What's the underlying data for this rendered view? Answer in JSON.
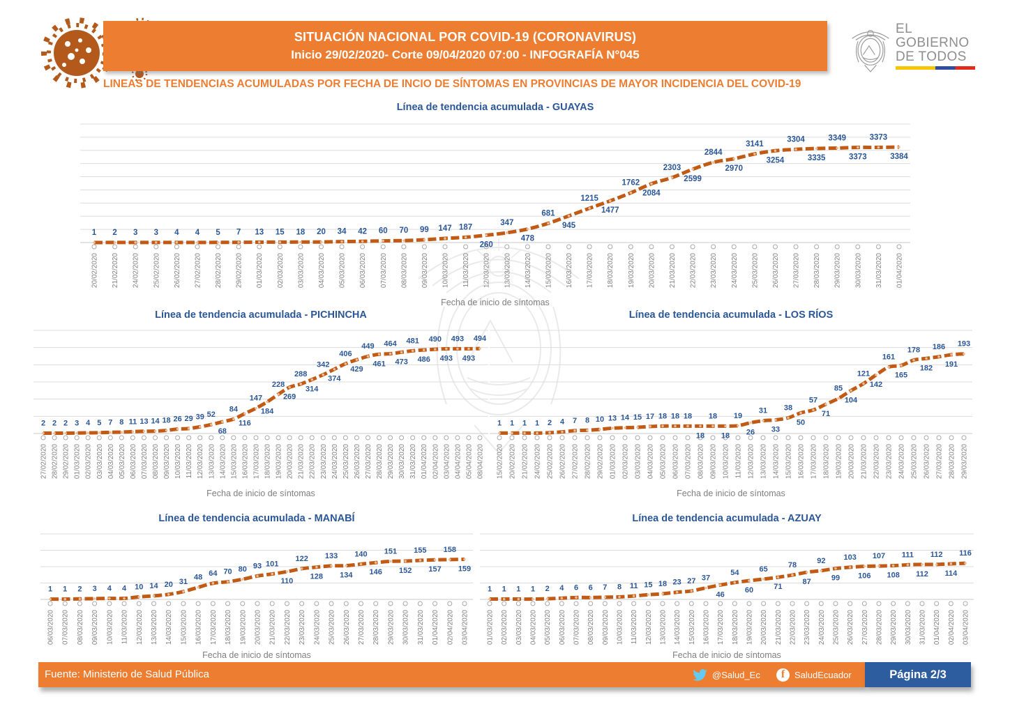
{
  "header": {
    "title_line1": "SITUACIÓN NACIONAL POR  COVID-19 (CORONAVIRUS)",
    "title_line2": "Inicio 29/02/2020- Corte 09/04/2020 07:00  - INFOGRAFÍA N°045",
    "subtitle": "LINEAS DE TENDENCIAS ACUMULADAS POR FECHA DE INCIO DE SÍNTOMAS EN PROVINCIAS DE MAYOR INCIDENCIA DEL COVID-19",
    "logo": {
      "line1": "EL",
      "line2": "GOBIERNO",
      "line3": "DE TODOS"
    }
  },
  "footer": {
    "source": "Fuente: Ministerio de Salud Pública",
    "twitter": "@Salud_Ec",
    "facebook": "SaludEcuador",
    "page": "Página 2/3"
  },
  "colors": {
    "banner_orange": "#ED7D31",
    "line_orange": "#C05A15",
    "label_blue": "#2B5797",
    "title_blue": "#2B5797",
    "date_gray": "#808080",
    "grid_gray": "#DCDCDC",
    "page_box_blue": "#2D5C9F",
    "twitter_blue": "#62CBF2",
    "logo_gray": "#8E8E8E",
    "virus_brown": "#B3591B"
  },
  "chart_data": [
    {
      "type": "line",
      "title": "Línea de tendencia acumulada - GUAYAS",
      "xlabel": "Fecha de inicio de síntomas",
      "x": [
        "20/02/2020",
        "21/02/2020",
        "24/02/2020",
        "25/02/2020",
        "26/02/2020",
        "27/02/2020",
        "28/02/2020",
        "29/02/2020",
        "01/03/2020",
        "02/03/2020",
        "03/03/2020",
        "04/03/2020",
        "05/03/2020",
        "06/03/2020",
        "07/03/2020",
        "08/03/2020",
        "09/03/2020",
        "10/03/2020",
        "11/03/2020",
        "12/03/2020",
        "13/03/2020",
        "14/03/2020",
        "15/03/2020",
        "16/03/2020",
        "17/03/2020",
        "18/03/2020",
        "19/03/2020",
        "20/03/2020",
        "21/03/2020",
        "22/03/2020",
        "23/03/2020",
        "24/03/2020",
        "25/03/2020",
        "26/03/2020",
        "27/03/2020",
        "28/03/2020",
        "29/03/2020",
        "30/03/2020",
        "31/03/2020",
        "01/04/2020"
      ],
      "values": [
        1,
        2,
        3,
        3,
        4,
        4,
        5,
        7,
        13,
        15,
        18,
        20,
        34,
        42,
        60,
        70,
        99,
        147,
        187,
        260,
        347,
        478,
        681,
        945,
        1215,
        1477,
        1762,
        2084,
        2303,
        2599,
        2844,
        2970,
        3141,
        3254,
        3304,
        3335,
        3349,
        3373,
        3373,
        3384
      ],
      "ylim": [
        0,
        4200
      ],
      "grid_intervals": 9,
      "alt_start": 19,
      "grid": true,
      "legend": "none"
    },
    {
      "type": "line",
      "title": "Línea de tendencia acumulada - PICHINCHA",
      "xlabel": "Fecha de inicio de síntomas",
      "x": [
        "27/02/2020",
        "28/02/2020",
        "29/02/2020",
        "01/03/2020",
        "02/03/2020",
        "03/03/2020",
        "04/03/2020",
        "05/03/2020",
        "06/03/2020",
        "07/03/2020",
        "08/03/2020",
        "09/03/2020",
        "10/03/2020",
        "11/03/2020",
        "12/03/2020",
        "13/03/2020",
        "14/03/2020",
        "15/03/2020",
        "16/03/2020",
        "17/03/2020",
        "18/03/2020",
        "19/03/2020",
        "20/03/2020",
        "21/03/2020",
        "22/03/2020",
        "23/03/2020",
        "24/03/2020",
        "25/03/2020",
        "26/03/2020",
        "27/03/2020",
        "28/03/2020",
        "29/03/2020",
        "30/03/2020",
        "31/03/2020",
        "01/04/2020",
        "02/04/2020",
        "03/04/2020",
        "04/04/2020",
        "05/04/2020",
        "08/04/2020"
      ],
      "values": [
        2,
        2,
        2,
        3,
        4,
        5,
        7,
        8,
        11,
        13,
        14,
        18,
        26,
        29,
        39,
        52,
        68,
        84,
        116,
        147,
        184,
        228,
        269,
        288,
        314,
        342,
        374,
        406,
        429,
        449,
        461,
        464,
        473,
        481,
        486,
        490,
        493,
        493,
        493,
        494
      ],
      "ylim": [
        0,
        600
      ],
      "grid_intervals": 6,
      "alt_start": 16,
      "grid": true,
      "legend": "none"
    },
    {
      "type": "line",
      "title": "Línea de tendencia acumulada - LOS RÍOS",
      "xlabel": "Fecha de inicio de síntomas",
      "x": [
        "15/02/2020",
        "20/02/2020",
        "21/02/2020",
        "24/02/2020",
        "25/02/2020",
        "26/02/2020",
        "27/02/2020",
        "28/02/2020",
        "29/02/2020",
        "01/03/2020",
        "02/03/2020",
        "03/03/2020",
        "04/03/2020",
        "05/03/2020",
        "06/03/2020",
        "07/03/2020",
        "08/03/2020",
        "09/03/2020",
        "10/03/2020",
        "11/03/2020",
        "12/03/2020",
        "13/03/2020",
        "14/03/2020",
        "15/03/2020",
        "16/03/2020",
        "17/03/2020",
        "18/03/2020",
        "19/03/2020",
        "20/03/2020",
        "21/03/2020",
        "22/03/2020",
        "23/03/2020",
        "24/03/2020",
        "25/03/2020",
        "26/03/2020",
        "27/03/2020",
        "28/03/2020",
        "29/03/2020"
      ],
      "values": [
        1,
        1,
        1,
        1,
        2,
        4,
        7,
        8,
        10,
        13,
        14,
        15,
        17,
        18,
        18,
        18,
        18,
        18,
        18,
        19,
        26,
        31,
        33,
        38,
        50,
        57,
        71,
        85,
        104,
        121,
        142,
        161,
        165,
        178,
        182,
        186,
        191,
        193
      ],
      "ylim": [
        0,
        250
      ],
      "grid_intervals": 6,
      "alt_start": 16,
      "grid": true,
      "legend": "none"
    },
    {
      "type": "line",
      "title": "Línea de tendencia acumulada - MANABÍ",
      "xlabel": "Fecha de inicio de síntomas",
      "x": [
        "06/03/2020",
        "07/03/2020",
        "08/03/2020",
        "09/03/2020",
        "10/03/2020",
        "11/03/2020",
        "12/03/2020",
        "13/03/2020",
        "14/03/2020",
        "15/03/2020",
        "16/03/2020",
        "17/03/2020",
        "18/03/2020",
        "19/03/2020",
        "20/03/2020",
        "21/03/2020",
        "22/03/2020",
        "23/03/2020",
        "24/03/2020",
        "25/03/2020",
        "26/03/2020",
        "27/03/2020",
        "28/03/2020",
        "29/03/2020",
        "30/03/2020",
        "31/03/2020",
        "01/04/2020",
        "02/04/2020",
        "03/04/2020"
      ],
      "values": [
        1,
        1,
        2,
        3,
        4,
        4,
        10,
        14,
        20,
        31,
        48,
        64,
        70,
        80,
        93,
        101,
        110,
        122,
        128,
        133,
        134,
        140,
        146,
        151,
        152,
        155,
        157,
        158,
        159
      ],
      "ylim": [
        0,
        260
      ],
      "grid_intervals": 4,
      "alt_start": 16,
      "grid": true,
      "legend": "none"
    },
    {
      "type": "line",
      "title": "Línea de tendencia acumulada - AZUAY",
      "xlabel": "Fecha de inicio de síntomas",
      "x": [
        "01/03/2020",
        "02/03/2020",
        "03/03/2020",
        "04/03/2020",
        "05/03/2020",
        "06/03/2020",
        "07/03/2020",
        "08/03/2020",
        "09/03/2020",
        "10/03/2020",
        "11/03/2020",
        "12/03/2020",
        "13/03/2020",
        "14/03/2020",
        "15/03/2020",
        "16/03/2020",
        "17/03/2020",
        "18/03/2020",
        "19/03/2020",
        "20/03/2020",
        "21/03/2020",
        "22/03/2020",
        "23/03/2020",
        "24/03/2020",
        "25/03/2020",
        "26/03/2020",
        "27/03/2020",
        "28/03/2020",
        "29/03/2020",
        "30/03/2020",
        "31/03/2020",
        "01/04/2020",
        "02/04/2020",
        "03/04/2020"
      ],
      "values": [
        1,
        1,
        1,
        1,
        2,
        4,
        6,
        6,
        7,
        8,
        11,
        15,
        18,
        23,
        27,
        37,
        46,
        54,
        60,
        65,
        71,
        78,
        87,
        92,
        99,
        103,
        106,
        107,
        108,
        111,
        112,
        112,
        114,
        116
      ],
      "ylim": [
        0,
        210
      ],
      "grid_intervals": 4,
      "alt_start": 16,
      "grid": true,
      "legend": "none"
    }
  ]
}
